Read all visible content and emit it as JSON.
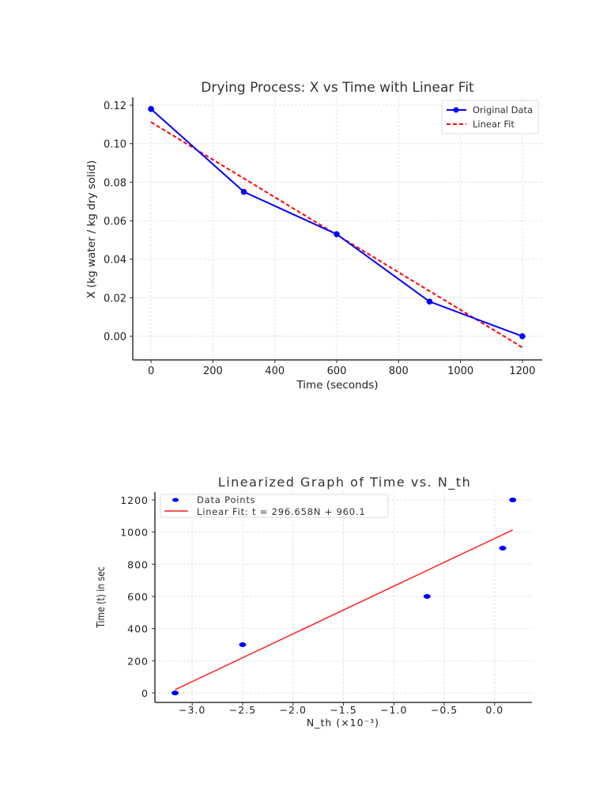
{
  "chart_data": [
    {
      "type": "line",
      "title": "Drying Process: X vs Time with Linear Fit",
      "xlabel": "Time (seconds)",
      "ylabel": "X (kg water / kg dry solid)",
      "xlim": [
        -59,
        1264
      ],
      "ylim": [
        -0.0123,
        0.1241
      ],
      "xticks": [
        0,
        200,
        400,
        600,
        800,
        1000,
        1200
      ],
      "xtick_labels": [
        "0",
        "200",
        "400",
        "600",
        "800",
        "1000",
        "1200"
      ],
      "yticks": [
        0,
        0.02,
        0.04,
        0.06,
        0.08,
        0.1,
        0.12
      ],
      "ytick_labels": [
        "0.00",
        "0.02",
        "0.04",
        "0.06",
        "0.08",
        "0.10",
        "0.12"
      ],
      "grid": true,
      "legend_position": "top-right",
      "series": [
        {
          "name": "Original Data",
          "style": "solid-marker",
          "color": "#0000ff",
          "x": [
            0,
            300,
            600,
            900,
            1200
          ],
          "y": [
            0.118,
            0.075,
            0.053,
            0.018,
            0.0
          ]
        },
        {
          "name": "Linear Fit",
          "style": "dashed",
          "color": "#ff0000",
          "x": [
            0,
            1200
          ],
          "y": [
            0.1112,
            -0.0058
          ]
        }
      ]
    },
    {
      "type": "scatter",
      "title": "Linearized Graph of Time vs. N_th",
      "xlabel": "N_th (×10⁻³)",
      "ylabel": "Time (t) in sec",
      "xlim": [
        -3.37,
        0.37
      ],
      "ylim": [
        -59,
        1249
      ],
      "xticks": [
        -3.0,
        -2.5,
        -2.0,
        -1.5,
        -1.0,
        -0.5,
        0.0
      ],
      "xtick_labels": [
        "−3.0",
        "−2.5",
        "−2.0",
        "−1.5",
        "−1.0",
        "−0.5",
        "0.0"
      ],
      "yticks": [
        0,
        200,
        400,
        600,
        800,
        1000,
        1200
      ],
      "ytick_labels": [
        "0",
        "200",
        "400",
        "600",
        "800",
        "1000",
        "1200"
      ],
      "grid": true,
      "legend_position": "top-left",
      "series": [
        {
          "name": "Data Points",
          "style": "markers",
          "color": "#0000ff",
          "x": [
            -3.17,
            -2.5,
            -0.67,
            0.08,
            0.18
          ],
          "y": [
            0,
            300,
            600,
            900,
            1200
          ]
        },
        {
          "name": "Linear Fit: t = 296.658N + 960.1",
          "style": "solid",
          "color": "#ff2020",
          "x": [
            -3.17,
            0.18
          ],
          "y": [
            20,
            1013.5
          ]
        }
      ]
    }
  ]
}
